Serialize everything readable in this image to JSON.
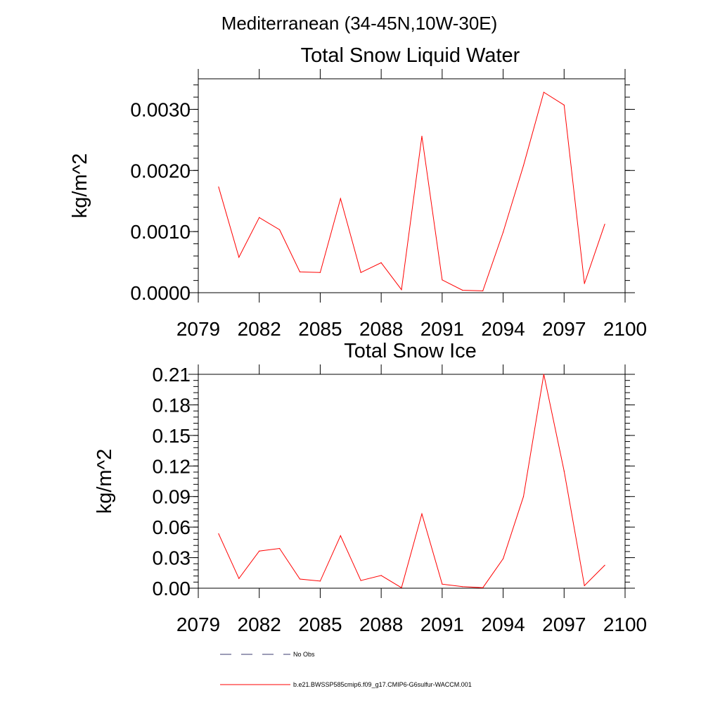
{
  "figure": {
    "title": "Mediterranean (34-45N,10W-30E)"
  },
  "chart_data": [
    {
      "type": "line",
      "title": "Total Snow Liquid Water",
      "ylabel": "kg/m^2",
      "xlabel": "",
      "xlim": [
        2079,
        2100
      ],
      "ylim": [
        0,
        0.0035
      ],
      "xticks": [
        2079,
        2082,
        2085,
        2088,
        2091,
        2094,
        2097,
        2100
      ],
      "xtick_labels": [
        "2079",
        "2082",
        "2085",
        "2088",
        "2091",
        "2094",
        "2097",
        "2100"
      ],
      "yticks": [
        0,
        0.001,
        0.002,
        0.003
      ],
      "ytick_labels": [
        "0.0000",
        "0.0010",
        "0.0020",
        "0.0030"
      ],
      "grid": false,
      "series": [
        {
          "name": "b.e21.BWSSP585cmip6.f09_g17.CMIP6-G6sulfur-WACCM.001",
          "color": "#ff0000",
          "x": [
            2080,
            2081,
            2082,
            2083,
            2084,
            2085,
            2086,
            2087,
            2088,
            2089,
            2090,
            2091,
            2092,
            2093,
            2094,
            2095,
            2096,
            2097,
            2098,
            2099
          ],
          "values": [
            0.00173,
            0.00058,
            0.00123,
            0.00103,
            0.00034,
            0.00033,
            0.00154,
            0.00033,
            0.00049,
            5e-05,
            0.00256,
            0.00021,
            4e-05,
            3e-05,
            0.00099,
            0.00208,
            0.00328,
            0.00307,
            0.00015,
            0.00112
          ]
        }
      ]
    },
    {
      "type": "line",
      "title": "Total Snow Ice",
      "ylabel": "kg/m^2",
      "xlabel": "",
      "xlim": [
        2079,
        2100
      ],
      "ylim": [
        0,
        0.21
      ],
      "xticks": [
        2079,
        2082,
        2085,
        2088,
        2091,
        2094,
        2097,
        2100
      ],
      "xtick_labels": [
        "2079",
        "2082",
        "2085",
        "2088",
        "2091",
        "2094",
        "2097",
        "2100"
      ],
      "yticks": [
        0,
        0.03,
        0.06,
        0.09,
        0.12,
        0.15,
        0.18,
        0.21
      ],
      "ytick_labels": [
        "0.00",
        "0.03",
        "0.06",
        "0.09",
        "0.12",
        "0.15",
        "0.18",
        "0.21"
      ],
      "grid": false,
      "series": [
        {
          "name": "b.e21.BWSSP585cmip6.f09_g17.CMIP6-G6sulfur-WACCM.001",
          "color": "#ff0000",
          "x": [
            2080,
            2081,
            2082,
            2083,
            2084,
            2085,
            2086,
            2087,
            2088,
            2089,
            2090,
            2091,
            2092,
            2093,
            2094,
            2095,
            2096,
            2097,
            2098,
            2099
          ],
          "values": [
            0.0535,
            0.0095,
            0.0365,
            0.039,
            0.009,
            0.007,
            0.0515,
            0.0075,
            0.0125,
            0.0005,
            0.073,
            0.004,
            0.0015,
            0.0005,
            0.029,
            0.09,
            0.21,
            0.115,
            0.0025,
            0.0225
          ]
        }
      ]
    }
  ],
  "legend": {
    "placement": "bottom-left",
    "items": [
      {
        "label": "No Obs",
        "color": "#3a3a6e",
        "style": "dashed"
      },
      {
        "label": "b.e21.BWSSP585cmip6.f09_g17.CMIP6-G6sulfur-WACCM.001",
        "color": "#ff0000",
        "style": "solid"
      }
    ]
  }
}
